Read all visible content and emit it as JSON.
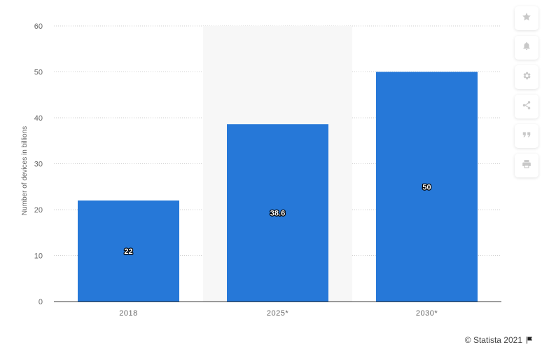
{
  "chart_data": {
    "type": "bar",
    "categories": [
      "2018",
      "2025*",
      "2030*"
    ],
    "values": [
      22,
      38.6,
      50
    ],
    "value_labels": [
      "22",
      "38.6",
      "50"
    ],
    "ylabel": "Number of devices in billions",
    "ylim": [
      0,
      60
    ],
    "yticks": [
      "0",
      "10",
      "20",
      "30",
      "40",
      "50",
      "60"
    ],
    "grid": true,
    "highlighted_category": "2025*",
    "bar_color": "#2678d8"
  },
  "sidebar": {
    "buttons": [
      {
        "icon": "star-icon"
      },
      {
        "icon": "bell-icon"
      },
      {
        "icon": "gear-icon"
      },
      {
        "icon": "share-icon"
      },
      {
        "icon": "quote-icon"
      },
      {
        "icon": "print-icon"
      }
    ]
  },
  "footer": {
    "credit": "© Statista 2021",
    "flag_icon": "flag-icon"
  }
}
